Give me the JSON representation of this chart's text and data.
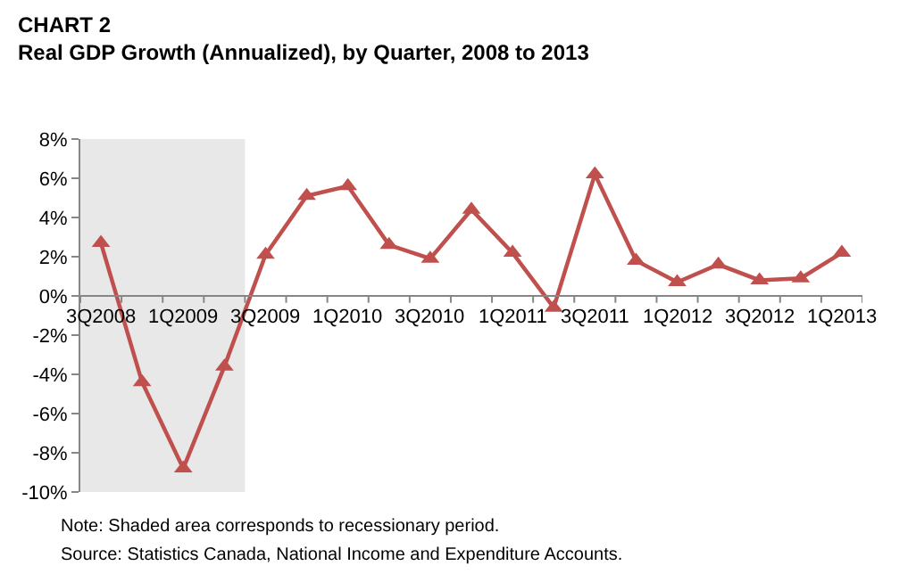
{
  "chart_data": {
    "type": "line",
    "title": "CHART 2",
    "subtitle": "Real GDP Growth (Annualized), by Quarter, 2008 to 2013",
    "categories": [
      "3Q2008",
      null,
      "1Q2009",
      null,
      "3Q2009",
      null,
      "1Q2010",
      null,
      "3Q2010",
      null,
      "1Q2011",
      null,
      "3Q2011",
      null,
      "1Q2012",
      null,
      "3Q2012",
      null,
      "1Q2013"
    ],
    "series": [
      {
        "color": "#c0504d",
        "values": [
          2.7,
          -4.4,
          -8.8,
          -3.6,
          2.1,
          5.1,
          5.6,
          2.6,
          1.9,
          4.4,
          2.2,
          -0.6,
          6.2,
          1.8,
          0.7,
          1.6,
          0.8,
          0.9,
          2.2
        ]
      }
    ],
    "ylim": [
      -10,
      8
    ],
    "yticks": [
      {
        "value": -10,
        "label": "-10%"
      },
      {
        "value": -8,
        "label": "-8%"
      },
      {
        "value": -6,
        "label": "-6%"
      },
      {
        "value": -4,
        "label": "-4%"
      },
      {
        "value": -2,
        "label": "-2%"
      },
      {
        "value": 0,
        "label": "0%"
      },
      {
        "value": 2,
        "label": "2%"
      },
      {
        "value": 4,
        "label": "4%"
      },
      {
        "value": 6,
        "label": "6%"
      },
      {
        "value": 8,
        "label": "8%"
      }
    ],
    "bands": [
      {
        "axis": "x",
        "from": "3Q2008",
        "to": "3Q2009",
        "color": "#e8e8e8"
      }
    ],
    "marker": "triangle",
    "line_style": "solid",
    "annotations": [
      "Note: Shaded area corresponds to recessionary period.",
      "Source: Statistics Canada, National Income and Expenditure Accounts."
    ]
  }
}
